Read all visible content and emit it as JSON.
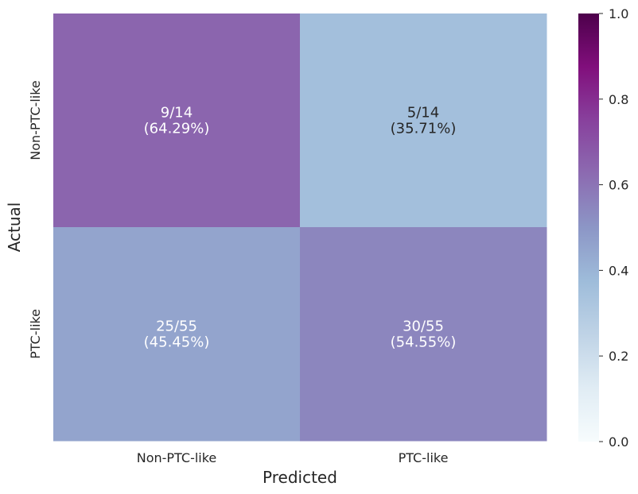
{
  "chart_data": {
    "type": "heatmap",
    "title": "",
    "xlabel": "Predicted",
    "ylabel": "Actual",
    "x_categories": [
      "Non-PTC-like",
      "PTC-like"
    ],
    "y_categories": [
      "Non-PTC-like",
      "PTC-like"
    ],
    "values": [
      [
        0.6429,
        0.3571
      ],
      [
        0.4545,
        0.5455
      ]
    ],
    "annotations": [
      [
        "9/14\n(64.29%)",
        "5/14\n(35.71%)"
      ],
      [
        "25/55\n(45.45%)",
        "30/55\n(54.55%)"
      ]
    ],
    "colorbar": {
      "min": 0.0,
      "max": 1.0,
      "ticks": [
        "0.0",
        "0.2",
        "0.4",
        "0.6",
        "0.8",
        "1.0"
      ],
      "colormap": "BuPu"
    },
    "annotation_colors": [
      [
        "#ffffff",
        "#262626"
      ],
      [
        "#ffffff",
        "#ffffff"
      ]
    ]
  }
}
